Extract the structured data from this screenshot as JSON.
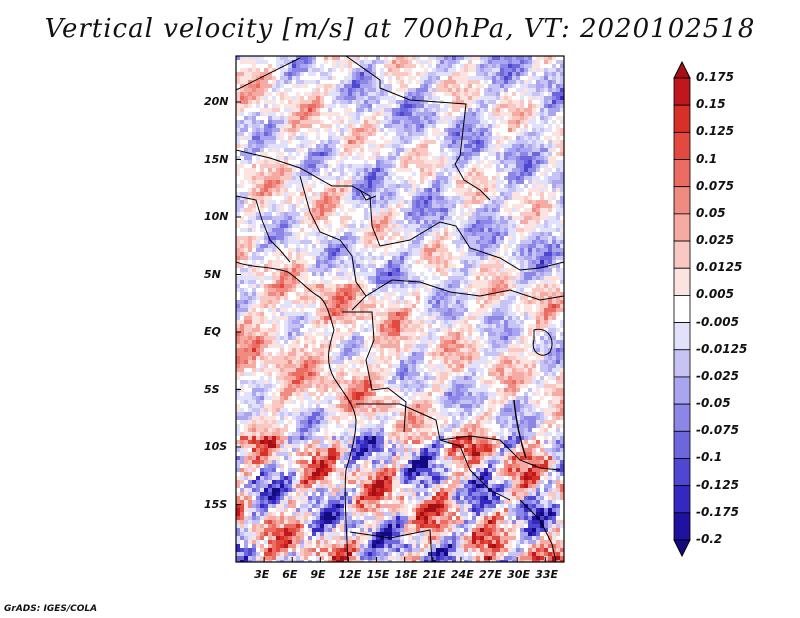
{
  "title": "Vertical velocity [m/s] at 700hPa, VT: 2020102518",
  "footer": "GrADS: IGES/COLA",
  "map": {
    "lon_range": [
      0,
      35
    ],
    "lat_range": [
      -20,
      24
    ],
    "lon_ticks": [
      "3E",
      "6E",
      "9E",
      "12E",
      "15E",
      "18E",
      "21E",
      "24E",
      "27E",
      "30E",
      "33E"
    ],
    "lat_ticks": [
      "20N",
      "15N",
      "10N",
      "5N",
      "EQ",
      "5S",
      "10S",
      "15S"
    ]
  },
  "colorbar": {
    "labels": [
      "0.175",
      "0.15",
      "0.125",
      "0.1",
      "0.075",
      "0.05",
      "0.025",
      "0.0125",
      "0.005",
      "-0.005",
      "-0.0125",
      "-0.025",
      "-0.05",
      "-0.075",
      "-0.1",
      "-0.125",
      "-0.175",
      "-0.2"
    ],
    "colors": [
      "#a50f15",
      "#c0171d",
      "#d73027",
      "#e2493f",
      "#ea6c62",
      "#f08b82",
      "#f5aaa3",
      "#f9c8c3",
      "#fde3e0",
      "#ffffff",
      "#e2e1fb",
      "#c7c4f5",
      "#a9a5ee",
      "#8c86e6",
      "#6d66dd",
      "#4f46d2",
      "#3428c0",
      "#1f129f",
      "#140a80"
    ]
  },
  "field": {
    "north_blue_bias": 0.2,
    "south_intensity": 0.9
  }
}
